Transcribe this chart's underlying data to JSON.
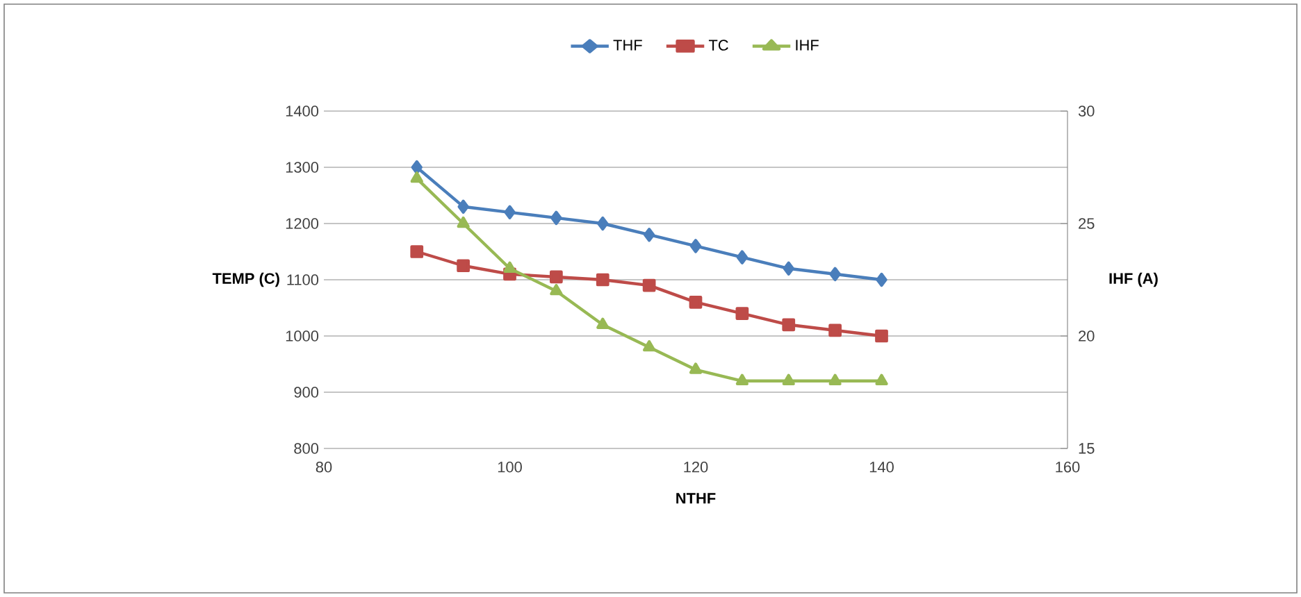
{
  "chart_data": {
    "type": "line",
    "xlabel": "NTHF",
    "ylabel": "TEMP (C)",
    "y2label": "IHF (A)",
    "x": [
      90,
      95,
      100,
      105,
      110,
      115,
      120,
      125,
      130,
      135,
      140
    ],
    "series": [
      {
        "name": "THF",
        "color": "#4a7ebb",
        "marker": "diamond",
        "values": [
          1300,
          1230,
          1220,
          1210,
          1200,
          1180,
          1160,
          1140,
          1120,
          1110,
          1100
        ]
      },
      {
        "name": "TC",
        "color": "#be4b48",
        "marker": "square",
        "values": [
          1150,
          1125,
          1110,
          1105,
          1100,
          1090,
          1060,
          1040,
          1020,
          1010,
          1000
        ]
      },
      {
        "name": "IHF",
        "color": "#98b954",
        "marker": "triangle",
        "axis": "y2",
        "values": [
          27,
          25,
          23,
          22,
          20.5,
          19.5,
          18.5,
          18,
          18,
          18,
          18
        ]
      }
    ],
    "xlim": [
      80,
      160
    ],
    "xticks": [
      80,
      100,
      120,
      140,
      160
    ],
    "ylim": [
      800,
      1400
    ],
    "yticks": [
      800,
      900,
      1000,
      1100,
      1200,
      1300,
      1400
    ],
    "y2lim": [
      15,
      30
    ],
    "y2ticks": [
      15,
      20,
      25,
      30
    ],
    "grid": "y",
    "legend": "top"
  }
}
